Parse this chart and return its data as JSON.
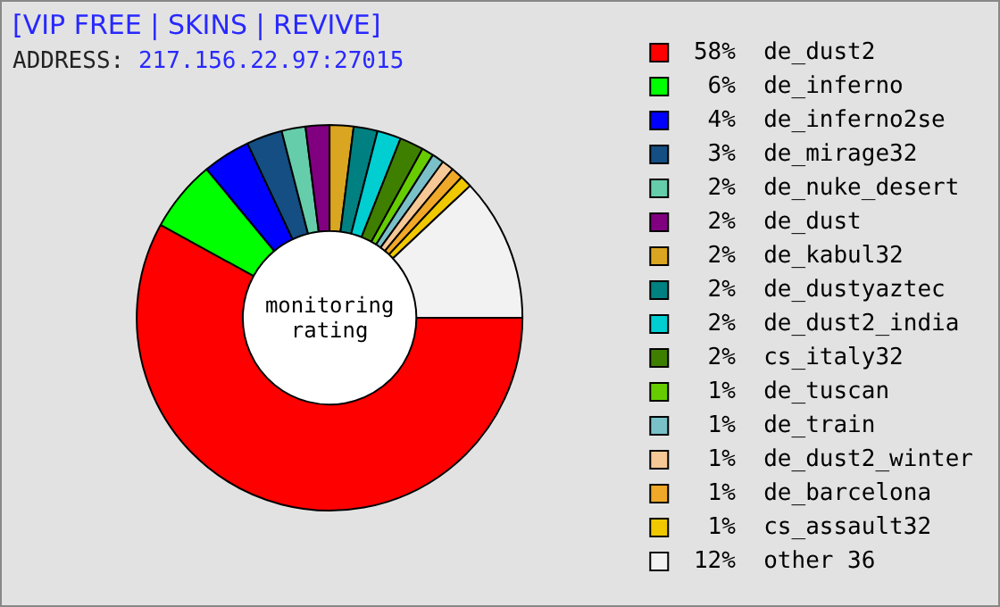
{
  "chart_data": {
    "type": "donut",
    "title": "[VIP FREE | SKINS | REVIVE]",
    "subtitle": "ADDRESS: 217.156.22.97:27015",
    "categories": [
      "de_dust2",
      "de_inferno",
      "de_inferno2se",
      "de_mirage32",
      "de_nuke_desert",
      "de_dust",
      "de_kabul32",
      "de_dustyaztec",
      "de_dust2_india",
      "cs_italy32",
      "de_tuscan",
      "de_train",
      "de_dust2_winter",
      "de_barcelona",
      "cs_assault32",
      "other 36"
    ],
    "values": [
      58,
      6,
      4,
      3,
      2,
      2,
      2,
      2,
      2,
      2,
      1,
      1,
      1,
      1,
      1,
      12
    ],
    "value_labels": [
      "58%",
      "6%",
      "4%",
      "3%",
      "2%",
      "2%",
      "2%",
      "2%",
      "2%",
      "2%",
      "1%",
      "1%",
      "1%",
      "1%",
      "1%",
      "12%"
    ],
    "colors": [
      "#ff0000",
      "#00ff00",
      "#0000ff",
      "#144e82",
      "#66cdaa",
      "#800080",
      "#daa520",
      "#008080",
      "#00ced1",
      "#3f7f00",
      "#66cc00",
      "#7ac0c8",
      "#f5c896",
      "#f0a828",
      "#f0c800",
      "#f2f2f2"
    ],
    "legend": "right",
    "annotations": [
      "monitoring rating"
    ]
  }
}
